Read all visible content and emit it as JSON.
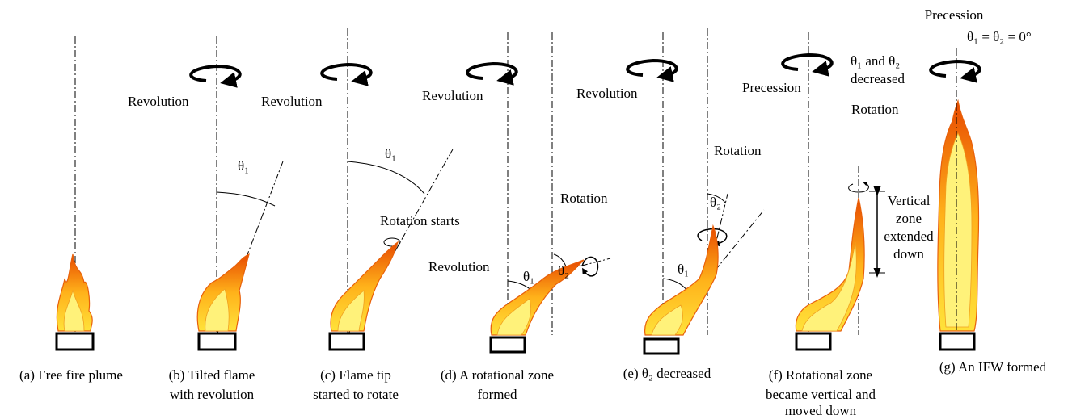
{
  "panels": [
    {
      "caption": [
        "(a) Free fire plume"
      ]
    },
    {
      "labels": [
        "Revolution",
        "θ₁"
      ],
      "caption": [
        "(b) Tilted flame",
        "with revolution"
      ]
    },
    {
      "labels": [
        "Revolution",
        "θ₁",
        "Rotation starts"
      ],
      "caption": [
        "(c) Flame tip",
        "started to rotate"
      ]
    },
    {
      "labels": [
        "Revolution",
        "Rotation",
        "Revolution",
        "θ₁",
        "θ₂"
      ],
      "caption": [
        "(d) A rotational zone",
        "formed"
      ]
    },
    {
      "labels": [
        "Revolution",
        "Rotation",
        "θ₂",
        "θ₁"
      ],
      "caption": [
        "(e) θ₂ decreased"
      ]
    },
    {
      "labels": [
        "Precession",
        "θ₁ and θ₂",
        "decreased",
        "Rotation",
        "Vertical",
        "zone",
        "extended",
        "down"
      ],
      "caption": [
        "(f) Rotational zone",
        "became vertical and",
        "moved down"
      ]
    },
    {
      "labels": [
        "Precession",
        "θ₁ = θ₂ = 0°"
      ],
      "caption": [
        "(g) An IFW formed"
      ]
    }
  ]
}
